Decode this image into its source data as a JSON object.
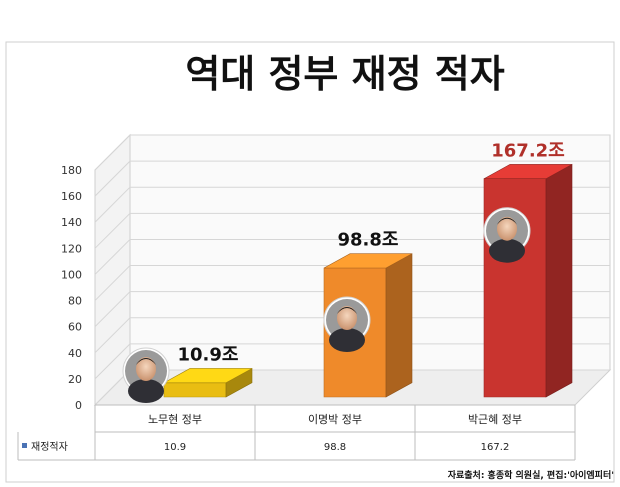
{
  "chart_data": {
    "type": "bar",
    "title": "역대 정부 재정 적자",
    "categories": [
      "노무현 정부",
      "이명박 정부",
      "박근혜 정부"
    ],
    "series": [
      {
        "name": "재정적자",
        "values": [
          10.9,
          98.8,
          167.2
        ]
      }
    ],
    "value_labels": [
      "10.9조",
      "98.8조",
      "167.2조"
    ],
    "table_values": [
      "10.9",
      "98.8",
      "167.2"
    ],
    "yticks": [
      "0",
      "20",
      "40",
      "60",
      "80",
      "100",
      "120",
      "140",
      "160",
      "180"
    ],
    "ylim": [
      0,
      180
    ],
    "grid": true,
    "legend": "data-table",
    "colors": [
      "#e9bd12",
      "#ef8a2a",
      "#c9342f"
    ],
    "label_colors": [
      "#111111",
      "#111111",
      "#b0302a"
    ],
    "style": "3d-bar",
    "icons": [
      "portrait-icon",
      "portrait-icon",
      "portrait-icon"
    ]
  },
  "source": "자료출처: 홍종학 의원실, 편집:'아이엠피터'"
}
